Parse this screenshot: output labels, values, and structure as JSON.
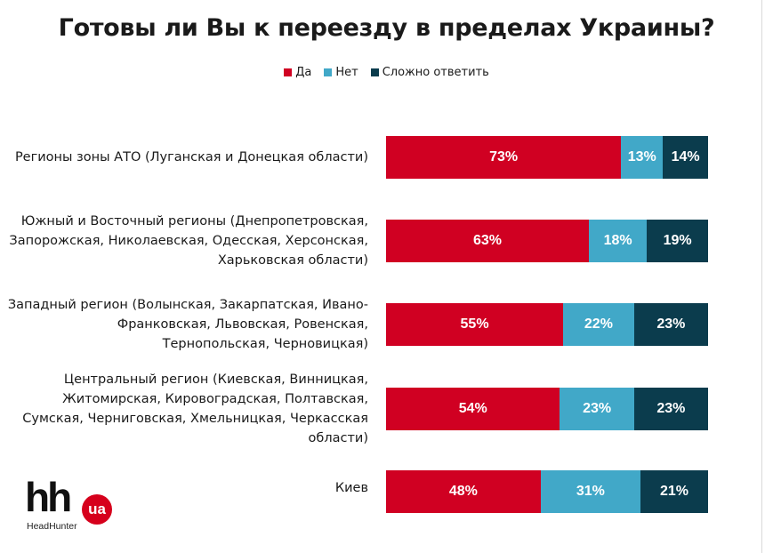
{
  "chart_data": {
    "type": "bar",
    "orientation": "horizontal",
    "stacked": true,
    "title": "Готовы ли Вы к переезду в пределах Украины?",
    "legend_position": "top",
    "series_order": [
      "Да",
      "Нет",
      "Сложно ответить"
    ],
    "colors": {
      "Да": "#d00022",
      "Нет": "#41a8c8",
      "Сложно ответить": "#0b3c4d"
    },
    "categories": [
      [
        "Регионы зоны АТО (Луганская и Донецкая области)"
      ],
      [
        "Южный и Восточный регионы (Днепропетровская,",
        "Запорожская, Николаевская, Одесская, Херсонская,",
        "Харьковская области)"
      ],
      [
        "Западный регион (Волынская, Закарпатская, Ивано-",
        "Франковская, Львовская, Ровенская,",
        "Тернопольская, Черновицкая)"
      ],
      [
        "Центральный регион (Киевская, Винницкая,",
        "Житомирская, Кировоградская, Полтавская,",
        "Сумская, Черниговская, Хмельницкая, Черкасская",
        "области)"
      ],
      [
        "Киев"
      ]
    ],
    "series": [
      {
        "name": "Да",
        "values": [
          73,
          63,
          55,
          54,
          48
        ]
      },
      {
        "name": "Нет",
        "values": [
          13,
          18,
          22,
          23,
          31
        ]
      },
      {
        "name": "Сложно ответить",
        "values": [
          14,
          19,
          23,
          23,
          21
        ]
      }
    ],
    "xlim": [
      0,
      100
    ]
  },
  "logo": {
    "name": "hh",
    "badge": "ua",
    "subtitle": "HeadHunter"
  }
}
